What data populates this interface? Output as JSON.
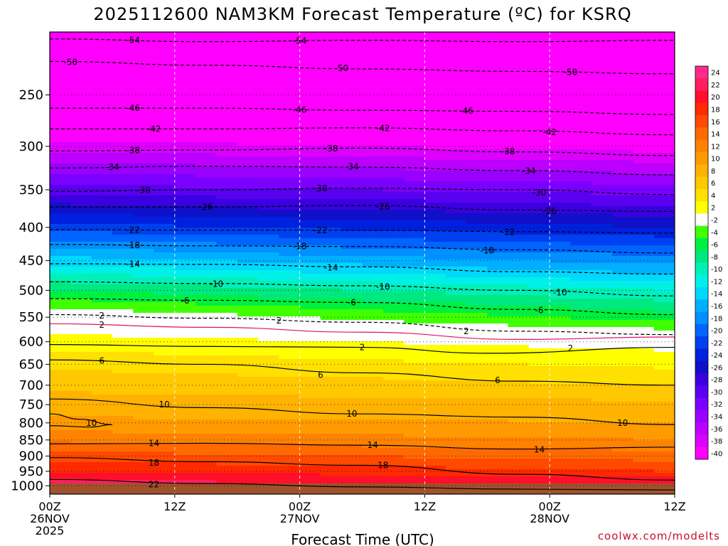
{
  "chart_data": {
    "type": "heatmap",
    "title": "2025112600 NAM3KM Forecast Temperature (ºC) for KSRQ",
    "xlabel": "Forecast Time (UTC)",
    "ylabel": "",
    "credit": "coolwx.com/modelts",
    "x_axis": {
      "range_hours": [
        0,
        60
      ],
      "ticks": [
        {
          "hour": 0,
          "lines": [
            "00Z",
            "26NOV",
            "2025"
          ]
        },
        {
          "hour": 12,
          "lines": [
            "12Z"
          ]
        },
        {
          "hour": 24,
          "lines": [
            "00Z",
            "27NOV"
          ]
        },
        {
          "hour": 36,
          "lines": [
            "12Z"
          ]
        },
        {
          "hour": 48,
          "lines": [
            "00Z",
            "28NOV"
          ]
        },
        {
          "hour": 60,
          "lines": [
            "12Z"
          ]
        }
      ]
    },
    "y_axis": {
      "unit": "hPa",
      "range": [
        1030,
        200
      ],
      "ticks": [
        250,
        300,
        350,
        400,
        450,
        500,
        550,
        600,
        650,
        700,
        750,
        800,
        850,
        900,
        950,
        1000
      ]
    },
    "colorbar": {
      "labels": [
        "24",
        "22",
        "20",
        "18",
        "16",
        "14",
        "12",
        "10",
        "8",
        "6",
        "4",
        "2",
        "-2",
        "-4",
        "-6",
        "-8",
        "-10",
        "-12",
        "-14",
        "-16",
        "-18",
        "-20",
        "-22",
        "-24",
        "-26",
        "-28",
        "-30",
        "-32",
        "-34",
        "-36",
        "-38",
        "-40"
      ],
      "colors": [
        "#ff2a8c",
        "#ff1f5c",
        "#ff0f2a",
        "#ff2a00",
        "#ff4a00",
        "#ff6a00",
        "#ff8200",
        "#ff9a00",
        "#ffb200",
        "#ffc800",
        "#ffe000",
        "#ffff00",
        "#ffffff",
        "#40ff00",
        "#00f040",
        "#00e880",
        "#00f0b8",
        "#00f0e8",
        "#00d8ff",
        "#00b0ff",
        "#0090ff",
        "#0064ff",
        "#0040f0",
        "#0020e0",
        "#1010c8",
        "#3a00e0",
        "#5a00f0",
        "#7a00ff",
        "#9a00ff",
        "#bb00ff",
        "#dd00ff",
        "#ff00ff"
      ]
    },
    "temperature_profile": [
      {
        "pressure": 1000,
        "start": 23,
        "end": 23
      },
      {
        "pressure": 950,
        "start": 20,
        "end": 18
      },
      {
        "pressure": 900,
        "start": 17,
        "end": 15
      },
      {
        "pressure": 850,
        "start": 13.5,
        "end": 12
      },
      {
        "pressure": 800,
        "start": 10.5,
        "end": 10
      },
      {
        "pressure": 750,
        "start": 9,
        "end": 8.5
      },
      {
        "pressure": 700,
        "start": 7.5,
        "end": 6
      },
      {
        "pressure": 650,
        "start": 5.5,
        "end": 3.5
      },
      {
        "pressure": 600,
        "start": 3,
        "end": 1
      },
      {
        "pressure": 550,
        "start": 0,
        "end": -5
      },
      {
        "pressure": 500,
        "start": -6,
        "end": -10
      },
      {
        "pressure": 450,
        "start": -13,
        "end": -17
      },
      {
        "pressure": 400,
        "start": -21,
        "end": -24
      },
      {
        "pressure": 350,
        "start": -29,
        "end": -31
      },
      {
        "pressure": 300,
        "start": -37,
        "end": -39
      },
      {
        "pressure": 250,
        "start": -46,
        "end": -47
      },
      {
        "pressure": 200,
        "start": -55,
        "end": -55
      }
    ],
    "contours": [
      {
        "value": "-54",
        "solid": false,
        "pts": [
          [
            0,
            205
          ],
          [
            15,
            207
          ],
          [
            30,
            206
          ],
          [
            45,
            207
          ],
          [
            60,
            206
          ]
        ],
        "labels": [
          [
            8,
            206
          ],
          [
            24,
            206.5
          ]
        ]
      },
      {
        "value": "-50",
        "solid": false,
        "pts": [
          [
            0,
            222
          ],
          [
            15,
            225
          ],
          [
            30,
            228
          ],
          [
            45,
            230
          ],
          [
            60,
            232
          ]
        ],
        "labels": [
          [
            2,
            222.5
          ],
          [
            28,
            227.5
          ],
          [
            50,
            230.5
          ]
        ]
      },
      {
        "value": "-46",
        "solid": false,
        "pts": [
          [
            0,
            262
          ],
          [
            15,
            262
          ],
          [
            30,
            264
          ],
          [
            45,
            265
          ],
          [
            60,
            268
          ]
        ],
        "labels": [
          [
            8,
            262
          ],
          [
            24,
            263.5
          ],
          [
            40,
            264.5
          ]
        ]
      },
      {
        "value": "-42",
        "solid": false,
        "pts": [
          [
            0,
            282
          ],
          [
            15,
            282
          ],
          [
            30,
            281
          ],
          [
            45,
            284
          ],
          [
            60,
            288
          ]
        ],
        "labels": [
          [
            10,
            282
          ],
          [
            32,
            281.5
          ],
          [
            48,
            285.5
          ]
        ]
      },
      {
        "value": "-38",
        "solid": false,
        "pts": [
          [
            0,
            305
          ],
          [
            15,
            304
          ],
          [
            30,
            302
          ],
          [
            45,
            306
          ],
          [
            60,
            310
          ]
        ],
        "labels": [
          [
            8,
            304.5
          ],
          [
            27,
            302.5
          ],
          [
            44,
            305.5
          ]
        ]
      },
      {
        "value": "-34",
        "solid": false,
        "pts": [
          [
            0,
            324
          ],
          [
            15,
            322
          ],
          [
            30,
            323
          ],
          [
            45,
            327
          ],
          [
            60,
            332
          ]
        ],
        "labels": [
          [
            6,
            323
          ],
          [
            29,
            322.5
          ],
          [
            46,
            327.5
          ]
        ]
      },
      {
        "value": "-30",
        "solid": false,
        "pts": [
          [
            0,
            352
          ],
          [
            15,
            350
          ],
          [
            30,
            348
          ],
          [
            45,
            350
          ],
          [
            60,
            356
          ]
        ],
        "labels": [
          [
            9,
            350.5
          ],
          [
            26,
            348.5
          ],
          [
            47,
            353.5
          ]
        ]
      },
      {
        "value": "-26",
        "solid": false,
        "pts": [
          [
            0,
            372
          ],
          [
            15,
            372
          ],
          [
            30,
            370
          ],
          [
            45,
            376
          ],
          [
            60,
            378
          ]
        ],
        "labels": [
          [
            15,
            372
          ],
          [
            32,
            371.5
          ],
          [
            48,
            377.5
          ]
        ]
      },
      {
        "value": "-22",
        "solid": false,
        "pts": [
          [
            0,
            403
          ],
          [
            15,
            404
          ],
          [
            30,
            404
          ],
          [
            45,
            406
          ],
          [
            60,
            408
          ]
        ],
        "labels": [
          [
            8,
            403.5
          ],
          [
            26,
            404
          ],
          [
            44,
            406.5
          ]
        ]
      },
      {
        "value": "-18",
        "solid": false,
        "pts": [
          [
            0,
            425
          ],
          [
            15,
            427
          ],
          [
            30,
            428
          ],
          [
            45,
            433
          ],
          [
            60,
            438
          ]
        ],
        "labels": [
          [
            8,
            426
          ],
          [
            24,
            427.5
          ],
          [
            42,
            434.5
          ]
        ]
      },
      {
        "value": "-14",
        "solid": false,
        "pts": [
          [
            0,
            455
          ],
          [
            15,
            456
          ],
          [
            30,
            460
          ],
          [
            45,
            468
          ],
          [
            60,
            472
          ]
        ],
        "labels": [
          [
            8,
            455.5
          ],
          [
            27,
            461.5
          ]
        ]
      },
      {
        "value": "-10",
        "solid": false,
        "pts": [
          [
            0,
            485
          ],
          [
            15,
            488
          ],
          [
            30,
            492
          ],
          [
            45,
            500
          ],
          [
            60,
            510
          ]
        ],
        "labels": [
          [
            16,
            489
          ],
          [
            32,
            494
          ],
          [
            49,
            504
          ]
        ]
      },
      {
        "value": "-6",
        "solid": false,
        "pts": [
          [
            0,
            515
          ],
          [
            15,
            518
          ],
          [
            30,
            522
          ],
          [
            45,
            535
          ],
          [
            60,
            545
          ]
        ],
        "labels": [
          [
            13,
            518.5
          ],
          [
            29,
            522
          ],
          [
            47,
            537
          ]
        ]
      },
      {
        "value": "2",
        "solid": false,
        "pts": [
          [
            0,
            545
          ],
          [
            15,
            552
          ],
          [
            30,
            560
          ],
          [
            45,
            578
          ],
          [
            60,
            585
          ]
        ],
        "labels": [
          [
            5,
            547
          ],
          [
            22,
            557
          ],
          [
            40,
            578
          ]
        ]
      },
      {
        "value": "2",
        "solid": true,
        "pink": true,
        "pts": [
          [
            0,
            563
          ],
          [
            15,
            570
          ],
          [
            30,
            580
          ],
          [
            45,
            595
          ],
          [
            60,
            590
          ]
        ],
        "labels": [
          [
            5,
            565
          ]
        ]
      },
      {
        "value": "2",
        "solid": true,
        "pts": [
          [
            0,
            606
          ],
          [
            15,
            610
          ],
          [
            30,
            612
          ],
          [
            42,
            625
          ],
          [
            60,
            612
          ]
        ],
        "labels": [
          [
            30,
            612
          ],
          [
            50,
            614
          ]
        ]
      },
      {
        "value": "6",
        "solid": true,
        "pts": [
          [
            0,
            640
          ],
          [
            15,
            650
          ],
          [
            30,
            670
          ],
          [
            45,
            690
          ],
          [
            60,
            700
          ]
        ],
        "labels": [
          [
            5,
            642
          ],
          [
            26,
            675
          ],
          [
            43,
            688
          ]
        ]
      },
      {
        "value": "10",
        "solid": true,
        "pts": [
          [
            0,
            735
          ],
          [
            15,
            758
          ],
          [
            30,
            775
          ],
          [
            45,
            784
          ],
          [
            60,
            805
          ]
        ],
        "labels": [
          [
            11,
            750
          ],
          [
            29,
            775
          ],
          [
            55,
            800
          ]
        ]
      },
      {
        "value": "10",
        "solid": true,
        "pts": [
          [
            0,
            775
          ],
          [
            3,
            790
          ],
          [
            6,
            805
          ],
          [
            4,
            812
          ],
          [
            0,
            808
          ]
        ],
        "labels": [
          [
            4,
            800
          ]
        ]
      },
      {
        "value": "14",
        "solid": true,
        "pts": [
          [
            0,
            862
          ],
          [
            15,
            860
          ],
          [
            30,
            866
          ],
          [
            45,
            878
          ],
          [
            60,
            872
          ]
        ],
        "labels": [
          [
            10,
            860
          ],
          [
            31,
            866
          ],
          [
            47,
            880
          ]
        ]
      },
      {
        "value": "18",
        "solid": true,
        "pts": [
          [
            0,
            905
          ],
          [
            15,
            918
          ],
          [
            30,
            930
          ],
          [
            45,
            960
          ],
          [
            60,
            980
          ]
        ],
        "labels": [
          [
            10,
            922
          ],
          [
            32,
            930
          ]
        ]
      },
      {
        "value": "22",
        "solid": true,
        "pts": [
          [
            0,
            978
          ],
          [
            15,
            992
          ],
          [
            30,
            1004
          ],
          [
            45,
            1012
          ],
          [
            60,
            1015
          ]
        ],
        "labels": [
          [
            10,
            995
          ]
        ]
      }
    ]
  }
}
